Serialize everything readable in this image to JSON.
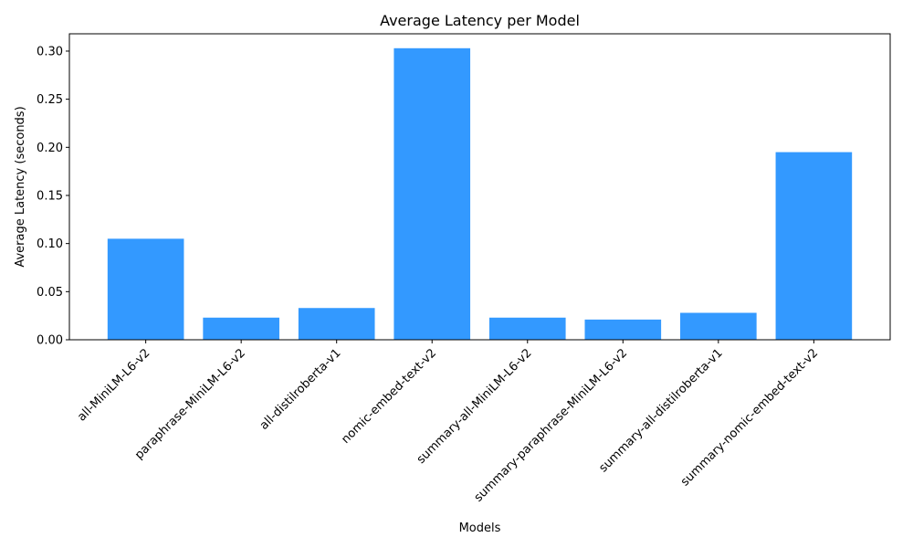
{
  "chart_data": {
    "type": "bar",
    "title": "Average Latency per Model",
    "xlabel": "Models",
    "ylabel": "Average Latency (seconds)",
    "categories": [
      "all-MiniLM-L6-v2",
      "paraphrase-MiniLM-L6-v2",
      "all-distilroberta-v1",
      "nomic-embed-text-v2",
      "summary-all-MiniLM-L6-v2",
      "summary-paraphrase-MiniLM-L6-v2",
      "summary-all-distilroberta-v1",
      "summary-nomic-embed-text-v2"
    ],
    "values": [
      0.105,
      0.023,
      0.033,
      0.303,
      0.023,
      0.021,
      0.028,
      0.195
    ],
    "ylim": [
      0,
      0.318
    ],
    "yticks": [
      0.0,
      0.05,
      0.1,
      0.15,
      0.2,
      0.25,
      0.3
    ],
    "ytick_labels": [
      "0.00",
      "0.05",
      "0.10",
      "0.15",
      "0.20",
      "0.25",
      "0.30"
    ],
    "bar_color": "#3399ff",
    "grid": false,
    "xtick_rotation": "45"
  }
}
